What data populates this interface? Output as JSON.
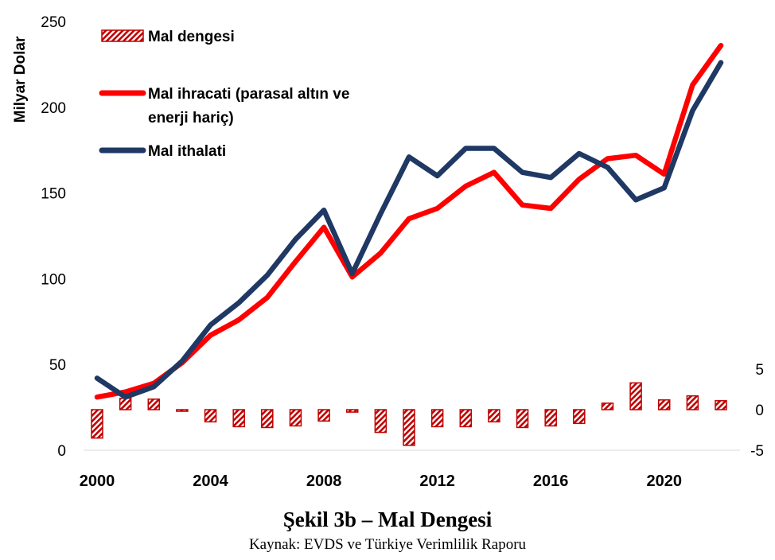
{
  "caption": {
    "title": "Şekil 3b – Mal Dengesi",
    "source": "Kaynak: EVDS ve Türkiye Verimlilik Raporu"
  },
  "colors": {
    "export_line": "#ff0000",
    "import_line": "#1f3864",
    "balance_bar": "#c00000"
  },
  "chart_data": {
    "type": "line",
    "ylabel": "Milyar Dolar",
    "xlim": [
      2000,
      2022
    ],
    "x_ticks": [
      "2000",
      "2004",
      "2008",
      "2012",
      "2016",
      "2020"
    ],
    "y_left": {
      "lim": [
        0,
        250
      ],
      "ticks": [
        "0",
        "50",
        "100",
        "150",
        "200",
        "250"
      ]
    },
    "y_right": {
      "lim": [
        -5,
        5
      ],
      "ticks": [
        "-5",
        "0",
        "5"
      ]
    },
    "years": [
      2000,
      2001,
      2002,
      2003,
      2004,
      2005,
      2006,
      2007,
      2008,
      2009,
      2010,
      2011,
      2012,
      2013,
      2014,
      2015,
      2016,
      2017,
      2018,
      2019,
      2020,
      2021,
      2022
    ],
    "series": [
      {
        "name": "Mal ihracati (parasal altın ve enerji hariç)",
        "axis": "left",
        "kind": "line",
        "color_key": "export_line",
        "values": [
          31,
          34,
          39,
          51,
          67,
          76,
          89,
          110,
          130,
          101,
          115,
          135,
          141,
          154,
          162,
          143,
          141,
          158,
          170,
          172,
          161,
          213,
          236
        ]
      },
      {
        "name": "Mal ithalati",
        "axis": "left",
        "kind": "line",
        "color_key": "import_line",
        "values": [
          42,
          31,
          37,
          52,
          73,
          86,
          102,
          123,
          140,
          103,
          138,
          171,
          160,
          176,
          176,
          162,
          159,
          173,
          165,
          146,
          153,
          198,
          226
        ]
      },
      {
        "name": "Mal dengesi",
        "axis": "right",
        "kind": "bar",
        "color_key": "balance_bar",
        "values": [
          -3.5,
          1.4,
          1.3,
          -0.2,
          -1.5,
          -2.1,
          -2.2,
          -2.0,
          -1.4,
          -0.3,
          -2.8,
          -4.4,
          -2.1,
          -2.1,
          -1.5,
          -2.2,
          -2.0,
          -1.7,
          0.8,
          3.3,
          1.2,
          1.7,
          1.1
        ]
      }
    ],
    "legend": [
      {
        "label": "Mal dengesi",
        "kind": "bar",
        "color_key": "balance_bar"
      },
      {
        "label_lines": [
          "Mal ihracati (parasal altın ve",
          "enerji hariç)"
        ],
        "kind": "line",
        "color_key": "export_line"
      },
      {
        "label": "Mal ithalati",
        "kind": "line",
        "color_key": "import_line"
      }
    ],
    "legend_position": "top-left",
    "grid": false
  }
}
